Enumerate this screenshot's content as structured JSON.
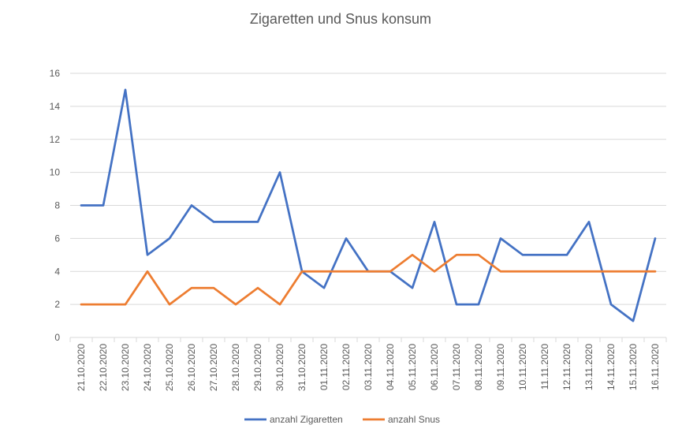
{
  "chart_data": {
    "type": "line",
    "title": "Zigaretten und Snus konsum",
    "xlabel": "",
    "ylabel": "",
    "ylim": [
      0,
      16
    ],
    "yticks": [
      0,
      2,
      4,
      6,
      8,
      10,
      12,
      14,
      16
    ],
    "grid": "horizontal",
    "legend_position": "bottom",
    "categories": [
      "21.10.2020",
      "22.10.2020",
      "23.10.2020",
      "24.10.2020",
      "25.10.2020",
      "26.10.2020",
      "27.10.2020",
      "28.10.2020",
      "29.10.2020",
      "30.10.2020",
      "31.10.2020",
      "01.11.2020",
      "02.11.2020",
      "03.11.2020",
      "04.11.2020",
      "05.11.2020",
      "06.11.2020",
      "07.11.2020",
      "08.11.2020",
      "09.11.2020",
      "10.11.2020",
      "11.11.2020",
      "12.11.2020",
      "13.11.2020",
      "14.11.2020",
      "15.11.2020",
      "16.11.2020"
    ],
    "series": [
      {
        "name": "anzahl Zigaretten",
        "color": "#4472c4",
        "values": [
          8,
          8,
          15,
          5,
          6,
          8,
          7,
          7,
          7,
          10,
          4,
          3,
          6,
          4,
          4,
          3,
          7,
          2,
          2,
          6,
          5,
          5,
          5,
          7,
          2,
          1,
          6
        ]
      },
      {
        "name": "anzahl Snus",
        "color": "#ed7d31",
        "values": [
          2,
          2,
          2,
          4,
          2,
          3,
          3,
          2,
          3,
          2,
          4,
          4,
          4,
          4,
          4,
          5,
          4,
          5,
          5,
          4,
          4,
          4,
          4,
          4,
          4,
          4,
          4
        ]
      }
    ]
  }
}
